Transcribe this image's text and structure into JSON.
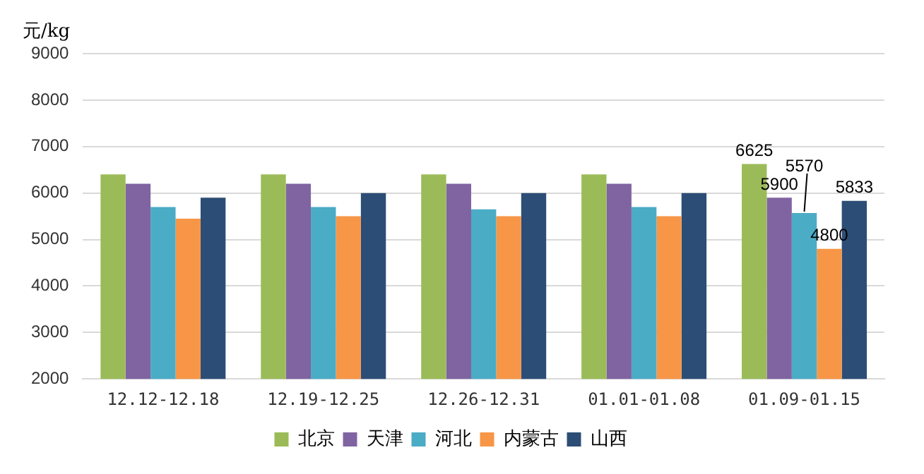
{
  "chart_data": {
    "type": "bar",
    "ylabel": "元/kg",
    "categories": [
      "12.12-12.18",
      "12.19-12.25",
      "12.26-12.31",
      "01.01-01.08",
      "01.09-01.15"
    ],
    "series": [
      {
        "name": "北京",
        "color": "#9bbb59",
        "values": [
          6400,
          6400,
          6400,
          6400,
          6625
        ],
        "value_labels": [
          null,
          null,
          null,
          null,
          "6625"
        ]
      },
      {
        "name": "天津",
        "color": "#8064a2",
        "values": [
          6200,
          6200,
          6200,
          6200,
          5900
        ],
        "value_labels": [
          null,
          null,
          null,
          null,
          "5900"
        ]
      },
      {
        "name": "河北",
        "color": "#4bacc6",
        "values": [
          5700,
          5700,
          5650,
          5700,
          5570
        ],
        "value_labels": [
          null,
          null,
          null,
          null,
          "5570"
        ]
      },
      {
        "name": "内蒙古",
        "color": "#f79646",
        "values": [
          5450,
          5500,
          5500,
          5500,
          4800
        ],
        "value_labels": [
          null,
          null,
          null,
          null,
          "4800"
        ]
      },
      {
        "name": "山西",
        "color": "#2c4d75",
        "values": [
          5900,
          6000,
          6000,
          6000,
          5833
        ],
        "value_labels": [
          null,
          null,
          null,
          null,
          "5833"
        ]
      }
    ],
    "ylim": [
      2000,
      9000
    ],
    "yticks": [
      2000,
      3000,
      4000,
      5000,
      6000,
      7000,
      8000,
      9000
    ],
    "grid": "y",
    "legend": "bottom"
  }
}
